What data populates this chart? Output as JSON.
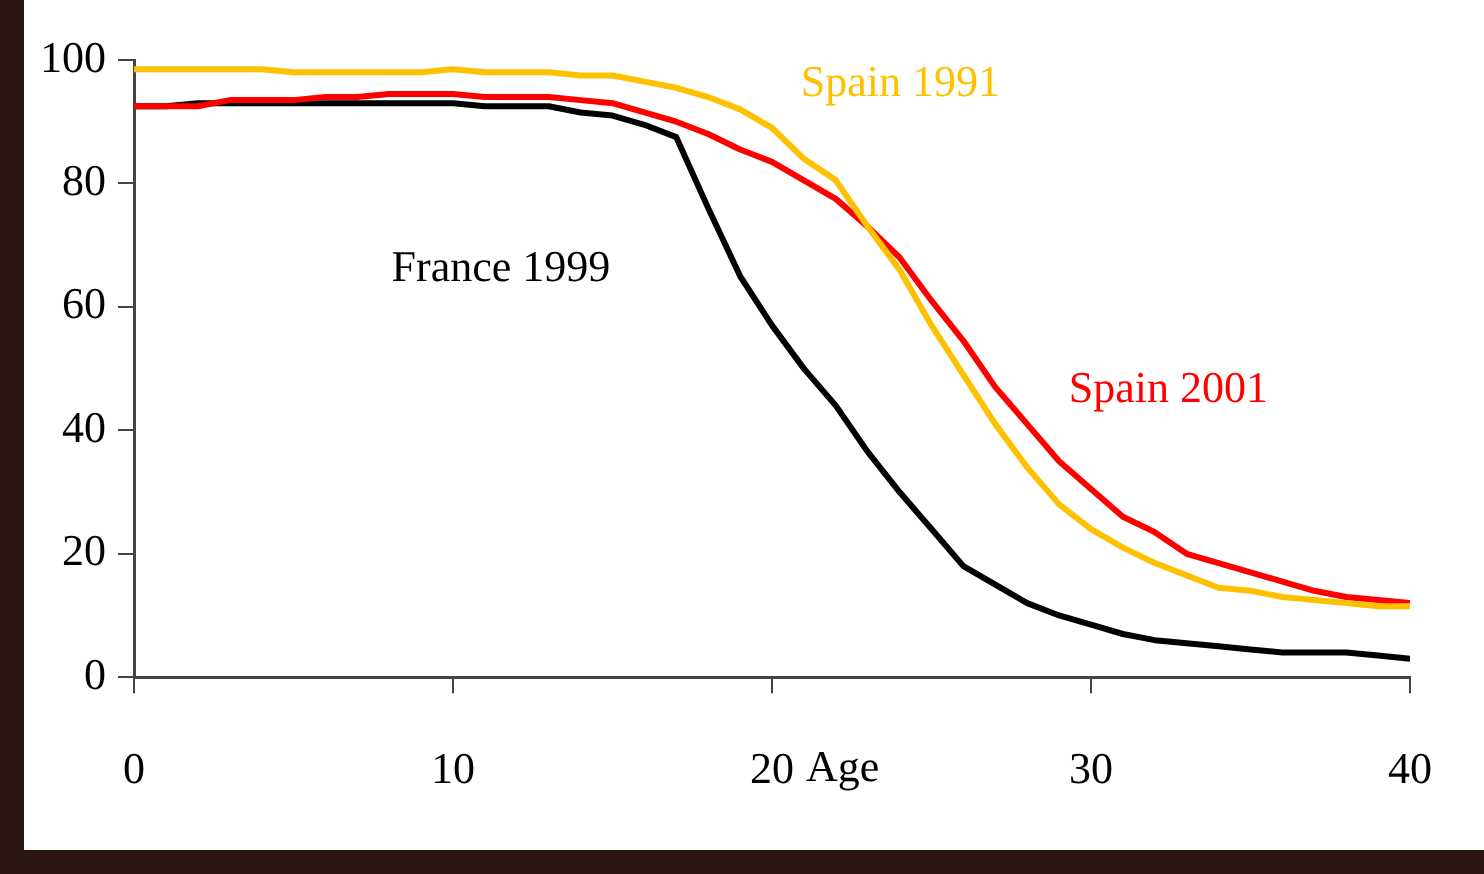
{
  "chart_data": {
    "type": "line",
    "xlabel": "Age",
    "x": [
      0,
      1,
      2,
      3,
      4,
      5,
      6,
      7,
      8,
      9,
      10,
      11,
      12,
      13,
      14,
      15,
      16,
      17,
      18,
      19,
      20,
      21,
      22,
      23,
      24,
      25,
      26,
      27,
      28,
      29,
      30,
      31,
      32,
      33,
      34,
      35,
      36,
      37,
      38,
      39,
      40
    ],
    "series": [
      {
        "name": "Spain 1991",
        "color": "#ffc000",
        "values": [
          98.5,
          98.5,
          98.5,
          98.5,
          98.5,
          98,
          98,
          98,
          98,
          98,
          98.5,
          98,
          98,
          98,
          97.5,
          97.5,
          96.5,
          95.5,
          94,
          92,
          89,
          84,
          80.5,
          73,
          66,
          57,
          49,
          41,
          34,
          28,
          24,
          21,
          18.5,
          16.5,
          14.5,
          14,
          13,
          12.5,
          12,
          11.5,
          11.5
        ]
      },
      {
        "name": "Spain 2001",
        "color": "#ff0000",
        "values": [
          92.5,
          92.5,
          92.5,
          93.5,
          93.5,
          93.5,
          94,
          94,
          94.5,
          94.5,
          94.5,
          94,
          94,
          94,
          93.5,
          93,
          91.5,
          90,
          88,
          85.5,
          83.5,
          80.5,
          77.5,
          73,
          68,
          61,
          54.5,
          47,
          41,
          35,
          30.5,
          26,
          23.5,
          20,
          18.5,
          17,
          15.5,
          14,
          13,
          12.5,
          12
        ]
      },
      {
        "name": "France 1999",
        "color": "#000000",
        "values": [
          92.5,
          92.5,
          93,
          93,
          93,
          93,
          93,
          93,
          93,
          93,
          93,
          92.5,
          92.5,
          92.5,
          91.5,
          91,
          89.5,
          87.5,
          76,
          65,
          57,
          50,
          44,
          36.5,
          30,
          24,
          18,
          15,
          12,
          10,
          8.5,
          7,
          6,
          5.5,
          5,
          4.5,
          4,
          4,
          4,
          3.5,
          3
        ]
      }
    ],
    "xlim": [
      0,
      40
    ],
    "xticks": [
      0,
      10,
      20,
      30,
      40
    ],
    "ylim": [
      0,
      100
    ],
    "yticks": [
      0,
      20,
      40,
      60,
      80,
      100
    ],
    "grid": false,
    "legend": false,
    "marker": "none",
    "line_style": "solid"
  }
}
